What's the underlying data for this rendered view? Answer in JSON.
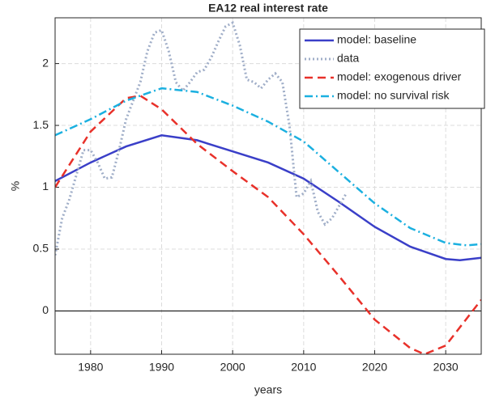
{
  "chart_data": {
    "type": "line",
    "title": "EA12 real interest rate",
    "xlabel": "years",
    "ylabel": "%",
    "xlim": [
      1975,
      2035
    ],
    "xticks": [
      1980,
      1990,
      2000,
      2010,
      2020,
      2030
    ],
    "ylim": [
      -0.35,
      2.37
    ],
    "yticks": [
      0,
      0.5,
      1,
      1.5,
      2
    ],
    "grid": true,
    "legend": "upper right",
    "series": [
      {
        "name": "model: baseline",
        "color": "#3a3fc8",
        "style": "solid",
        "x": [
          1975,
          1980,
          1985,
          1990,
          1995,
          2000,
          2005,
          2010,
          2015,
          2020,
          2025,
          2030,
          2032,
          2035
        ],
        "values": [
          1.05,
          1.2,
          1.33,
          1.42,
          1.38,
          1.29,
          1.2,
          1.07,
          0.88,
          0.68,
          0.52,
          0.42,
          0.41,
          0.43
        ]
      },
      {
        "name": "data",
        "color": "#a0aec8",
        "style": "dotted",
        "x": [
          1975,
          1976,
          1977,
          1978,
          1979,
          1980,
          1981,
          1982,
          1983,
          1984,
          1985,
          1986,
          1987,
          1988,
          1989,
          1990,
          1991,
          1992,
          1993,
          1994,
          1995,
          1996,
          1997,
          1998,
          1999,
          2000,
          2001,
          2002,
          2003,
          2004,
          2005,
          2006,
          2007,
          2008,
          2009,
          2010,
          2011,
          2012,
          2013,
          2014,
          2015,
          2016
        ],
        "values": [
          0.45,
          0.75,
          0.9,
          1.1,
          1.3,
          1.3,
          1.2,
          1.07,
          1.08,
          1.3,
          1.55,
          1.7,
          1.85,
          2.1,
          2.25,
          2.27,
          2.1,
          1.85,
          1.78,
          1.85,
          1.93,
          1.95,
          2.05,
          2.18,
          2.3,
          2.33,
          2.15,
          1.87,
          1.85,
          1.8,
          1.87,
          1.92,
          1.85,
          1.5,
          0.92,
          0.95,
          1.05,
          0.8,
          0.7,
          0.75,
          0.85,
          0.95
        ]
      },
      {
        "name": "model: exogenous driver",
        "color": "#e8312a",
        "style": "dashed",
        "x": [
          1975,
          1980,
          1985,
          1987,
          1990,
          1995,
          2000,
          2005,
          2010,
          2015,
          2020,
          2025,
          2027,
          2030,
          2035
        ],
        "values": [
          1.0,
          1.45,
          1.72,
          1.74,
          1.63,
          1.35,
          1.13,
          0.92,
          0.62,
          0.28,
          -0.07,
          -0.3,
          -0.35,
          -0.28,
          0.09
        ]
      },
      {
        "name": "model: no survival risk",
        "color": "#1bb0e0",
        "style": "dashdot",
        "x": [
          1975,
          1980,
          1985,
          1990,
          1995,
          2000,
          2005,
          2010,
          2015,
          2020,
          2025,
          2030,
          2033,
          2035
        ],
        "values": [
          1.42,
          1.55,
          1.7,
          1.8,
          1.77,
          1.66,
          1.53,
          1.37,
          1.12,
          0.87,
          0.67,
          0.55,
          0.53,
          0.54
        ]
      }
    ]
  }
}
